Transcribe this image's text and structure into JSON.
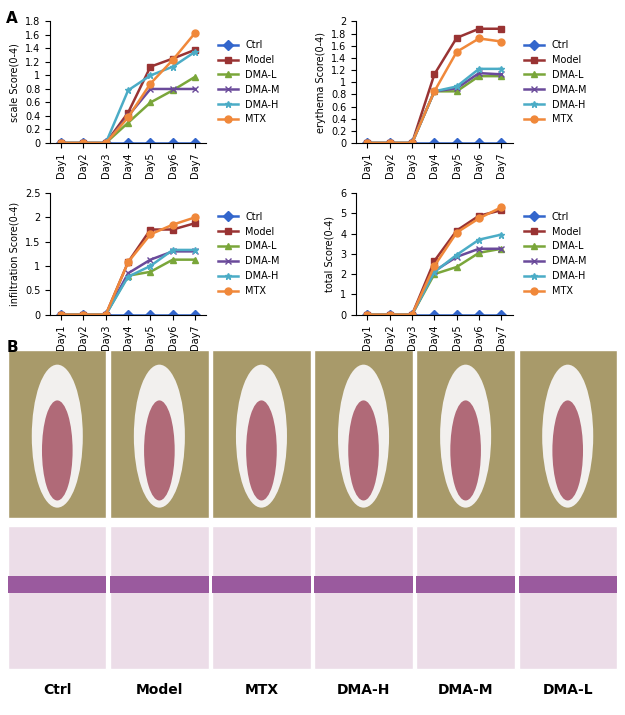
{
  "chart_data": [
    {
      "type": "line",
      "y_label": "scale Score(0-4)",
      "categories": [
        "Day1",
        "Day2",
        "Day3",
        "Day4",
        "Day5",
        "Day6",
        "Day7"
      ],
      "ylim": [
        0,
        1.8
      ],
      "yticks": [
        0,
        0.2,
        0.4,
        0.6,
        0.8,
        1,
        1.2,
        1.4,
        1.6,
        1.8
      ],
      "legend": "right",
      "series": [
        {
          "name": "Ctrl",
          "color": "#3366cc",
          "marker": "diamond",
          "line_style": "solid",
          "values": [
            0,
            0,
            0,
            0,
            0,
            0,
            0
          ]
        },
        {
          "name": "Model",
          "color": "#993333",
          "marker": "square",
          "line_style": "solid",
          "values": [
            0,
            0,
            0,
            0.45,
            1.13,
            1.25,
            1.38
          ]
        },
        {
          "name": "DMA-L",
          "color": "#7aa63a",
          "marker": "triangle",
          "line_style": "solid",
          "values": [
            0,
            0,
            0,
            0.3,
            0.6,
            0.78,
            0.98
          ]
        },
        {
          "name": "DMA-M",
          "color": "#6a4a9a",
          "marker": "x",
          "line_style": "solid",
          "values": [
            0,
            0,
            0,
            0.4,
            0.8,
            0.8,
            0.8
          ]
        },
        {
          "name": "DMA-H",
          "color": "#4bacc6",
          "marker": "star",
          "line_style": "solid",
          "values": [
            0,
            0,
            0,
            0.78,
            1.0,
            1.13,
            1.35
          ]
        },
        {
          "name": "MTX",
          "color": "#f0883a",
          "marker": "circle",
          "line_style": "solid",
          "values": [
            0,
            0,
            0,
            0.38,
            0.88,
            1.23,
            1.63
          ]
        }
      ]
    },
    {
      "type": "line",
      "y_label": "erythema Score(0-4)",
      "categories": [
        "Day1",
        "Day2",
        "Day3",
        "Day4",
        "Day5",
        "Day6",
        "Day7"
      ],
      "ylim": [
        0,
        2
      ],
      "yticks": [
        0,
        0.2,
        0.4,
        0.6,
        0.8,
        1,
        1.2,
        1.4,
        1.6,
        1.8,
        2
      ],
      "legend": "right",
      "series": [
        {
          "name": "Ctrl",
          "color": "#3366cc",
          "marker": "diamond",
          "line_style": "solid",
          "values": [
            0,
            0,
            0,
            0,
            0,
            0,
            0
          ]
        },
        {
          "name": "Model",
          "color": "#993333",
          "marker": "square",
          "line_style": "solid",
          "values": [
            0,
            0,
            0,
            1.13,
            1.73,
            1.88,
            1.88
          ]
        },
        {
          "name": "DMA-L",
          "color": "#7aa63a",
          "marker": "triangle",
          "line_style": "solid",
          "values": [
            0,
            0,
            0,
            0.85,
            0.85,
            1.1,
            1.1
          ]
        },
        {
          "name": "DMA-M",
          "color": "#6a4a9a",
          "marker": "x",
          "line_style": "solid",
          "values": [
            0,
            0,
            0,
            0.85,
            0.9,
            1.15,
            1.13
          ]
        },
        {
          "name": "DMA-H",
          "color": "#4bacc6",
          "marker": "star",
          "line_style": "solid",
          "values": [
            0,
            0,
            0,
            0.85,
            0.93,
            1.22,
            1.22
          ]
        },
        {
          "name": "MTX",
          "color": "#f0883a",
          "marker": "circle",
          "line_style": "solid",
          "values": [
            0,
            0,
            0,
            0.85,
            1.5,
            1.72,
            1.67
          ]
        }
      ]
    },
    {
      "type": "line",
      "y_label": "infiltration Score(0-4)",
      "categories": [
        "Day1",
        "Day2",
        "Day3",
        "Day4",
        "Day5",
        "Day6",
        "Day7"
      ],
      "ylim": [
        0,
        2.5
      ],
      "yticks": [
        0,
        0.5,
        1,
        1.5,
        2,
        2.5
      ],
      "legend": "right",
      "series": [
        {
          "name": "Ctrl",
          "color": "#3366cc",
          "marker": "diamond",
          "line_style": "solid",
          "values": [
            0,
            0,
            0,
            0,
            0,
            0,
            0
          ]
        },
        {
          "name": "Model",
          "color": "#993333",
          "marker": "square",
          "line_style": "solid",
          "values": [
            0,
            0,
            0,
            1.08,
            1.75,
            1.75,
            1.88
          ]
        },
        {
          "name": "DMA-L",
          "color": "#7aa63a",
          "marker": "triangle",
          "line_style": "solid",
          "values": [
            0,
            0,
            0,
            0.8,
            0.88,
            1.13,
            1.13
          ]
        },
        {
          "name": "DMA-M",
          "color": "#6a4a9a",
          "marker": "x",
          "line_style": "solid",
          "values": [
            0,
            0,
            0,
            0.85,
            1.13,
            1.3,
            1.3
          ]
        },
        {
          "name": "DMA-H",
          "color": "#4bacc6",
          "marker": "star",
          "line_style": "solid",
          "values": [
            0,
            0,
            0,
            0.78,
            1.0,
            1.33,
            1.33
          ]
        },
        {
          "name": "MTX",
          "color": "#f0883a",
          "marker": "circle",
          "line_style": "solid",
          "values": [
            0,
            0,
            0,
            1.08,
            1.65,
            1.85,
            2.0
          ]
        }
      ]
    },
    {
      "type": "line",
      "y_label": "total Score(0-4)",
      "categories": [
        "Day1",
        "Day2",
        "Day3",
        "Day4",
        "Day5",
        "Day6",
        "Day7"
      ],
      "ylim": [
        0,
        6
      ],
      "yticks": [
        0,
        1,
        2,
        3,
        4,
        5,
        6
      ],
      "legend": "right",
      "series": [
        {
          "name": "Ctrl",
          "color": "#3366cc",
          "marker": "diamond",
          "line_style": "solid",
          "values": [
            0,
            0,
            0,
            0,
            0,
            0,
            0
          ]
        },
        {
          "name": "Model",
          "color": "#993333",
          "marker": "square",
          "line_style": "solid",
          "values": [
            0,
            0,
            0,
            2.65,
            4.15,
            4.88,
            5.15
          ]
        },
        {
          "name": "DMA-L",
          "color": "#7aa63a",
          "marker": "triangle",
          "line_style": "solid",
          "values": [
            0,
            0,
            0,
            2.0,
            2.35,
            3.05,
            3.25
          ]
        },
        {
          "name": "DMA-M",
          "color": "#6a4a9a",
          "marker": "x",
          "line_style": "solid",
          "values": [
            0,
            0,
            0,
            2.15,
            2.85,
            3.25,
            3.25
          ]
        },
        {
          "name": "DMA-H",
          "color": "#4bacc6",
          "marker": "star",
          "line_style": "solid",
          "values": [
            0,
            0,
            0,
            2.1,
            2.95,
            3.7,
            3.95
          ]
        },
        {
          "name": "MTX",
          "color": "#f0883a",
          "marker": "circle",
          "line_style": "solid",
          "values": [
            0,
            0,
            0,
            2.4,
            4.05,
            4.75,
            5.3
          ]
        }
      ]
    }
  ],
  "panel_labels": [
    "A",
    "B"
  ],
  "image_captions": [
    "Ctrl",
    "Model",
    "MTX",
    "DMA-H",
    "DMA-M",
    "DMA-L"
  ]
}
